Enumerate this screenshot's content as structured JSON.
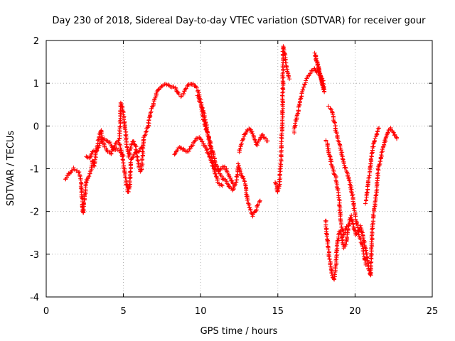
{
  "chart_data": {
    "type": "scatter",
    "title": "Day 230 of 2018, Sidereal Day-to-day VTEC variation (SDTVAR) for receiver gour",
    "xlabel": "GPS time / hours",
    "ylabel": "SDTVAR / TECUs",
    "xlim": [
      0,
      25
    ],
    "ylim": [
      -4,
      2
    ],
    "xticks": [
      0,
      5,
      10,
      15,
      20,
      25
    ],
    "yticks": [
      -4,
      -3,
      -2,
      -1,
      0,
      1,
      2
    ],
    "xtick_labels": [
      "0",
      "5",
      "10",
      "15",
      "20",
      "25"
    ],
    "ytick_labels": [
      "-4",
      "-3",
      "-2",
      "-1",
      "0",
      "1",
      "2"
    ],
    "grid": true,
    "marker": "+",
    "colors": {
      "series": "#ff0000",
      "grid": "#a0a0a0",
      "axis": "#000000"
    },
    "series": [
      {
        "name": "SDTVAR",
        "path": [
          [
            1.25,
            -1.25
          ],
          [
            1.5,
            -1.1
          ],
          [
            1.75,
            -1.0
          ],
          [
            2.0,
            -1.05
          ],
          [
            2.15,
            -1.1
          ],
          [
            2.25,
            -1.25
          ],
          [
            2.3,
            -1.6
          ],
          [
            2.35,
            -1.9
          ],
          [
            2.4,
            -2.05
          ],
          [
            2.45,
            -1.8
          ],
          [
            2.55,
            -1.5
          ],
          [
            2.6,
            -1.3
          ],
          [
            2.75,
            -1.2
          ],
          [
            2.9,
            -1.05
          ],
          [
            3.0,
            -0.8
          ],
          [
            3.1,
            -0.95
          ],
          [
            3.2,
            -0.7
          ],
          [
            3.3,
            -0.5
          ],
          [
            3.45,
            -0.2
          ],
          [
            3.55,
            -0.1
          ],
          [
            3.65,
            -0.35
          ],
          [
            3.8,
            -0.5
          ],
          [
            4.0,
            -0.6
          ],
          [
            4.2,
            -0.65
          ],
          [
            4.4,
            -0.5
          ],
          [
            4.6,
            -0.35
          ],
          [
            4.75,
            -0.3
          ],
          [
            4.85,
            0.55
          ],
          [
            5.0,
            0.3
          ],
          [
            5.1,
            0.0
          ],
          [
            5.2,
            -0.4
          ],
          [
            5.35,
            -0.7
          ],
          [
            5.45,
            -0.55
          ],
          [
            5.6,
            -0.35
          ],
          [
            5.7,
            -0.4
          ],
          [
            5.8,
            -0.5
          ],
          [
            5.9,
            -0.75
          ],
          [
            6.0,
            -0.95
          ],
          [
            6.1,
            -1.05
          ],
          [
            6.2,
            -1.0
          ],
          [
            6.3,
            -0.3
          ],
          [
            6.5,
            -0.1
          ],
          [
            6.6,
            0.0
          ],
          [
            6.75,
            0.3
          ],
          [
            6.95,
            0.55
          ],
          [
            7.2,
            0.8
          ],
          [
            7.5,
            0.95
          ],
          [
            7.8,
            0.98
          ],
          [
            8.1,
            0.92
          ],
          [
            8.35,
            0.9
          ],
          [
            8.55,
            0.75
          ],
          [
            8.7,
            0.7
          ],
          [
            8.85,
            0.75
          ],
          [
            9.0,
            0.85
          ],
          [
            9.2,
            0.97
          ],
          [
            9.4,
            1.0
          ],
          [
            9.6,
            0.95
          ],
          [
            9.8,
            0.85
          ],
          [
            10.0,
            0.6
          ],
          [
            10.15,
            0.2
          ],
          [
            10.3,
            0.0
          ],
          [
            10.45,
            -0.2
          ],
          [
            10.6,
            -0.35
          ],
          [
            10.75,
            -0.55
          ],
          [
            10.9,
            -0.8
          ],
          [
            11.1,
            -1.0
          ],
          [
            11.3,
            -1.15
          ],
          [
            11.5,
            -1.25
          ],
          [
            11.7,
            -1.3
          ],
          [
            11.9,
            -1.45
          ],
          [
            12.1,
            -1.5
          ],
          [
            12.3,
            -1.3
          ],
          [
            12.45,
            -0.9
          ],
          [
            12.6,
            -1.1
          ],
          [
            12.75,
            -1.2
          ],
          [
            12.9,
            -1.4
          ],
          [
            13.05,
            -1.75
          ],
          [
            13.2,
            -1.95
          ],
          [
            13.35,
            -2.1
          ],
          [
            13.55,
            -2.0
          ],
          [
            13.7,
            -1.85
          ],
          [
            13.85,
            -1.75
          ]
        ],
        "path2": [
          [
            4.7,
            -0.4
          ],
          [
            4.85,
            -0.55
          ],
          [
            5.0,
            -0.85
          ],
          [
            5.1,
            -1.1
          ],
          [
            5.2,
            -1.35
          ],
          [
            5.3,
            -1.55
          ],
          [
            5.4,
            -1.4
          ],
          [
            5.5,
            -0.8
          ],
          [
            5.6,
            -0.7
          ],
          [
            5.8,
            -0.6
          ],
          [
            6.0,
            -0.6
          ],
          [
            6.2,
            -0.5
          ]
        ],
        "path3": [
          [
            2.6,
            -0.7
          ],
          [
            2.8,
            -0.75
          ],
          [
            3.0,
            -0.6
          ],
          [
            3.2,
            -0.6
          ],
          [
            3.4,
            -0.5
          ],
          [
            3.6,
            -0.3
          ],
          [
            3.8,
            -0.3
          ],
          [
            4.0,
            -0.35
          ],
          [
            4.2,
            -0.45
          ],
          [
            4.4,
            -0.55
          ],
          [
            4.6,
            -0.55
          ],
          [
            4.8,
            -0.6
          ],
          [
            5.0,
            -0.7
          ]
        ],
        "path4": [
          [
            8.3,
            -0.65
          ],
          [
            8.5,
            -0.55
          ],
          [
            8.7,
            -0.5
          ],
          [
            8.9,
            -0.55
          ],
          [
            9.1,
            -0.62
          ],
          [
            9.3,
            -0.55
          ],
          [
            9.5,
            -0.4
          ],
          [
            9.7,
            -0.3
          ],
          [
            9.9,
            -0.25
          ],
          [
            10.1,
            -0.35
          ],
          [
            10.3,
            -0.5
          ],
          [
            10.5,
            -0.65
          ],
          [
            10.7,
            -0.85
          ],
          [
            10.9,
            -1.0
          ],
          [
            11.1,
            -1.05
          ],
          [
            11.3,
            -1.0
          ],
          [
            11.5,
            -0.95
          ],
          [
            11.7,
            -1.05
          ],
          [
            11.9,
            -1.2
          ],
          [
            12.1,
            -1.35
          ]
        ],
        "path5": [
          [
            9.8,
            0.7
          ],
          [
            10.0,
            0.55
          ],
          [
            10.2,
            0.3
          ],
          [
            10.4,
            -0.05
          ],
          [
            10.6,
            -0.45
          ],
          [
            10.8,
            -0.9
          ],
          [
            11.0,
            -1.2
          ],
          [
            11.2,
            -1.35
          ],
          [
            11.4,
            -1.4
          ]
        ],
        "path6": [
          [
            12.5,
            -0.6
          ],
          [
            12.65,
            -0.4
          ],
          [
            12.8,
            -0.25
          ],
          [
            13.0,
            -0.1
          ],
          [
            13.2,
            -0.05
          ],
          [
            13.4,
            -0.2
          ],
          [
            13.6,
            -0.45
          ],
          [
            13.8,
            -0.35
          ],
          [
            14.0,
            -0.2
          ],
          [
            14.2,
            -0.3
          ],
          [
            14.35,
            -0.35
          ]
        ],
        "path7": [
          [
            14.85,
            -1.3
          ],
          [
            15.0,
            -1.55
          ],
          [
            15.1,
            -1.35
          ],
          [
            15.2,
            -0.8
          ],
          [
            15.25,
            -0.2
          ],
          [
            15.3,
            0.2
          ],
          [
            15.35,
            1.85
          ],
          [
            15.45,
            1.7
          ],
          [
            15.55,
            1.4
          ],
          [
            15.65,
            1.2
          ],
          [
            15.75,
            1.1
          ]
        ],
        "path8": [
          [
            16.05,
            -0.15
          ],
          [
            16.15,
            0.1
          ],
          [
            16.3,
            0.3
          ],
          [
            16.45,
            0.6
          ],
          [
            16.6,
            0.8
          ],
          [
            16.75,
            1.0
          ],
          [
            16.9,
            1.15
          ],
          [
            17.05,
            1.2
          ],
          [
            17.2,
            1.3
          ],
          [
            17.35,
            1.35
          ],
          [
            17.5,
            1.25
          ],
          [
            17.6,
            1.3
          ],
          [
            17.75,
            1.2
          ],
          [
            17.85,
            1.05
          ]
        ],
        "path9": [
          [
            18.1,
            -2.2
          ],
          [
            18.15,
            -2.5
          ],
          [
            18.25,
            -2.8
          ],
          [
            18.35,
            -3.1
          ],
          [
            18.45,
            -3.35
          ],
          [
            18.55,
            -3.55
          ],
          [
            18.65,
            -3.6
          ],
          [
            18.75,
            -3.3
          ],
          [
            18.85,
            -2.8
          ],
          [
            18.95,
            -2.5
          ],
          [
            19.05,
            -2.45
          ],
          [
            19.15,
            -2.6
          ],
          [
            19.3,
            -2.85
          ],
          [
            19.45,
            -2.7
          ],
          [
            19.6,
            -2.3
          ],
          [
            19.75,
            -2.1
          ],
          [
            19.9,
            -2.35
          ],
          [
            20.05,
            -2.55
          ],
          [
            20.2,
            -2.5
          ],
          [
            20.35,
            -2.35
          ],
          [
            20.5,
            -2.55
          ],
          [
            20.65,
            -2.8
          ],
          [
            20.8,
            -3.1
          ],
          [
            20.9,
            -3.35
          ],
          [
            21.0,
            -3.5
          ],
          [
            21.05,
            -3.1
          ],
          [
            21.1,
            -2.5
          ],
          [
            21.2,
            -2.0
          ],
          [
            21.3,
            -1.85
          ],
          [
            21.4,
            -1.5
          ],
          [
            21.5,
            -1.0
          ],
          [
            21.6,
            -0.9
          ],
          [
            21.75,
            -0.6
          ],
          [
            21.9,
            -0.4
          ],
          [
            22.1,
            -0.15
          ],
          [
            22.3,
            -0.05
          ],
          [
            22.5,
            -0.15
          ],
          [
            22.7,
            -0.3
          ]
        ],
        "path10": [
          [
            18.1,
            -0.35
          ],
          [
            18.2,
            -0.4
          ],
          [
            18.3,
            -0.6
          ],
          [
            18.45,
            -0.85
          ],
          [
            18.6,
            -1.05
          ],
          [
            18.75,
            -1.2
          ],
          [
            18.85,
            -1.4
          ],
          [
            18.95,
            -1.7
          ],
          [
            19.05,
            -2.1
          ],
          [
            19.15,
            -2.4
          ],
          [
            19.3,
            -2.55
          ],
          [
            19.45,
            -2.35
          ]
        ],
        "path11": [
          [
            18.3,
            0.45
          ],
          [
            18.45,
            0.4
          ],
          [
            18.6,
            0.2
          ],
          [
            18.75,
            -0.1
          ],
          [
            18.9,
            -0.3
          ],
          [
            19.05,
            -0.5
          ],
          [
            19.2,
            -0.75
          ],
          [
            19.35,
            -0.95
          ],
          [
            19.5,
            -1.1
          ],
          [
            19.65,
            -1.3
          ],
          [
            19.8,
            -1.55
          ],
          [
            19.95,
            -1.95
          ],
          [
            20.1,
            -2.25
          ],
          [
            20.25,
            -2.55
          ],
          [
            20.4,
            -2.7
          ],
          [
            20.55,
            -2.95
          ],
          [
            20.7,
            -3.25
          ]
        ],
        "path12": [
          [
            20.7,
            -1.8
          ],
          [
            20.8,
            -1.5
          ],
          [
            20.9,
            -1.2
          ],
          [
            21.0,
            -0.95
          ],
          [
            21.1,
            -0.6
          ],
          [
            21.25,
            -0.35
          ],
          [
            21.4,
            -0.2
          ],
          [
            21.55,
            -0.05
          ]
        ],
        "path13": [
          [
            17.9,
            1.1
          ],
          [
            18.0,
            0.8
          ],
          [
            17.4,
            1.7
          ],
          [
            17.9,
            0.95
          ]
        ]
      }
    ]
  }
}
